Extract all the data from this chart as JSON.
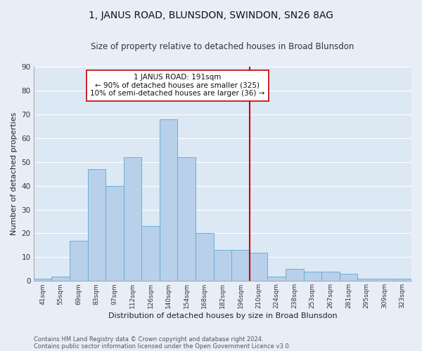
{
  "title": "1, JANUS ROAD, BLUNSDON, SWINDON, SN26 8AG",
  "subtitle": "Size of property relative to detached houses in Broad Blunsdon",
  "xlabel": "Distribution of detached houses by size in Broad Blunsdon",
  "ylabel": "Number of detached properties",
  "bar_color": "#b8d0ea",
  "bar_edge_color": "#6aaed6",
  "background_color": "#dde8f5",
  "fig_color": "#e8eef8",
  "grid_color": "#ffffff",
  "categories": [
    "41sqm",
    "55sqm",
    "69sqm",
    "83sqm",
    "97sqm",
    "112sqm",
    "126sqm",
    "140sqm",
    "154sqm",
    "168sqm",
    "182sqm",
    "196sqm",
    "210sqm",
    "224sqm",
    "238sqm",
    "253sqm",
    "267sqm",
    "281sqm",
    "295sqm",
    "309sqm",
    "323sqm"
  ],
  "values": [
    1,
    2,
    17,
    47,
    40,
    52,
    23,
    68,
    52,
    20,
    13,
    13,
    12,
    2,
    5,
    4,
    4,
    3,
    1,
    1,
    1
  ],
  "ylim": [
    0,
    90
  ],
  "yticks": [
    0,
    10,
    20,
    30,
    40,
    50,
    60,
    70,
    80,
    90
  ],
  "annotation_text": "1 JANUS ROAD: 191sqm\n← 90% of detached houses are smaller (325)\n10% of semi-detached houses are larger (36) →",
  "vline_x_index": 11.5,
  "annotation_box_color": "#ffffff",
  "annotation_border_color": "#cc0000",
  "vline_color": "#cc0000",
  "footer_line1": "Contains HM Land Registry data © Crown copyright and database right 2024.",
  "footer_line2": "Contains public sector information licensed under the Open Government Licence v3.0."
}
